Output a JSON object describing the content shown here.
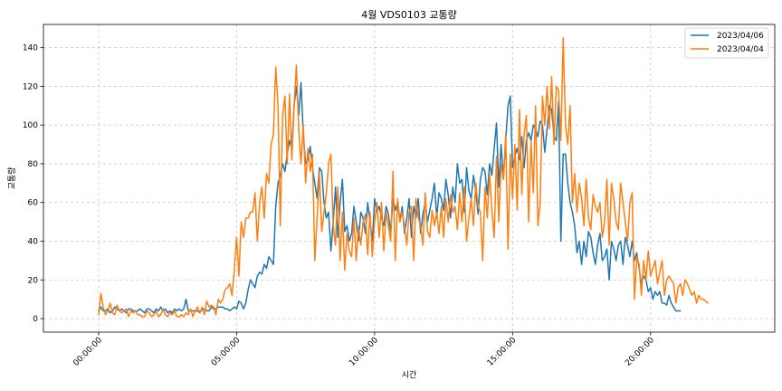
{
  "chart_data": {
    "type": "line",
    "title": "4월 VDS0103 교통량",
    "xlabel": "시간",
    "ylabel": "교통량",
    "xlim": [
      -7200,
      88200
    ],
    "ylim": [
      -7,
      152
    ],
    "x_ticks": [
      {
        "value": 0,
        "label": "00:00:00"
      },
      {
        "value": 18000,
        "label": "05:00:00"
      },
      {
        "value": 36000,
        "label": "10:00:00"
      },
      {
        "value": 54000,
        "label": "15:00:00"
      },
      {
        "value": 72000,
        "label": "20:00:00"
      }
    ],
    "y_ticks": [
      0,
      20,
      40,
      60,
      80,
      100,
      120,
      140
    ],
    "grid": true,
    "legend_position": "top-right",
    "interval_seconds": 300,
    "series": [
      {
        "name": "2023/04/06",
        "color": "#1f77b4",
        "values": [
          4,
          6,
          4,
          4,
          5,
          3,
          4,
          6,
          5,
          4,
          5,
          4,
          3,
          5,
          5,
          4,
          4,
          4,
          5,
          4,
          3,
          5,
          5,
          4,
          3,
          5,
          4,
          6,
          4,
          5,
          3,
          4,
          3,
          5,
          4,
          5,
          4,
          5,
          10,
          4,
          4,
          4,
          4,
          4,
          3,
          5,
          5,
          4,
          4,
          6,
          5,
          5,
          6,
          6,
          6,
          5,
          5,
          4,
          5,
          6,
          5,
          9,
          8,
          5,
          8,
          15,
          20,
          18,
          16,
          22,
          24,
          23,
          28,
          26,
          32,
          30,
          28,
          58,
          70,
          74,
          80,
          76,
          85,
          92,
          88,
          110,
          120,
          105,
          122,
          95,
          80,
          82,
          89,
          78,
          70,
          62,
          78,
          76,
          60,
          52,
          55,
          35,
          50,
          68,
          42,
          60,
          72,
          45,
          48,
          40,
          44,
          58,
          50,
          40,
          55,
          52,
          44,
          60,
          50,
          40,
          62,
          55,
          58,
          52,
          48,
          58,
          54,
          45,
          62,
          56,
          60,
          50,
          58,
          44,
          52,
          62,
          42,
          58,
          52,
          62,
          44,
          54,
          60,
          50,
          56,
          62,
          70,
          52,
          65,
          62,
          56,
          72,
          64,
          52,
          68,
          60,
          80,
          70,
          72,
          55,
          78,
          66,
          62,
          74,
          66,
          54,
          72,
          78,
          76,
          64,
          80,
          74,
          88,
          101,
          68,
          90,
          72,
          92,
          110,
          115,
          78,
          84,
          88,
          82,
          94,
          78,
          92,
          96,
          92,
          100,
          98,
          94,
          102,
          100,
          86,
          98,
          110,
          108,
          94,
          92,
          112,
          40,
          85,
          85,
          70,
          60,
          55,
          48,
          34,
          40,
          28,
          40,
          32,
          45,
          42,
          34,
          28,
          38,
          44,
          30,
          32,
          36,
          20,
          40,
          36,
          30,
          38,
          40,
          28,
          42,
          38,
          32,
          40,
          30,
          34,
          26,
          18,
          22,
          20,
          14,
          16,
          10,
          14,
          12,
          14,
          8,
          8,
          7,
          12,
          8,
          6,
          4,
          4,
          4
        ]
      },
      {
        "name": "2023/04/04",
        "color": "#ff7f0e",
        "values": [
          2,
          13,
          6,
          2,
          4,
          8,
          3,
          2,
          7,
          4,
          3,
          4,
          5,
          1,
          4,
          3,
          4,
          2,
          2,
          1,
          1,
          4,
          3,
          1,
          2,
          4,
          1,
          2,
          5,
          2,
          1,
          3,
          2,
          4,
          1,
          1,
          2,
          1,
          3,
          2,
          5,
          1,
          4,
          6,
          3,
          6,
          2,
          9,
          6,
          7,
          6,
          2,
          10,
          8,
          10,
          15,
          16,
          18,
          12,
          25,
          42,
          22,
          50,
          42,
          52,
          52,
          55,
          55,
          65,
          40,
          60,
          68,
          52,
          75,
          70,
          90,
          95,
          130,
          110,
          48,
          105,
          115,
          80,
          116,
          82,
          110,
          131,
          98,
          80,
          100,
          70,
          88,
          76,
          85,
          30,
          52,
          75,
          45,
          55,
          65,
          80,
          85,
          48,
          38,
          68,
          30,
          55,
          25,
          44,
          35,
          32,
          52,
          30,
          48,
          38,
          50,
          54,
          33,
          55,
          32,
          50,
          60,
          42,
          60,
          35,
          55,
          48,
          40,
          76,
          30,
          62,
          50,
          55,
          48,
          38,
          55,
          58,
          30,
          62,
          52,
          48,
          38,
          65,
          45,
          42,
          56,
          48,
          55,
          44,
          58,
          42,
          62,
          50,
          64,
          55,
          58,
          46,
          65,
          50,
          68,
          40,
          52,
          62,
          48,
          70,
          58,
          55,
          30,
          68,
          52,
          75,
          56,
          42,
          84,
          50,
          80,
          72,
          95,
          36,
          85,
          62,
          90,
          56,
          108,
          64,
          95,
          105,
          50,
          92,
          65,
          110,
          48,
          60,
          115,
          100,
          120,
          98,
          125,
          90,
          120,
          118,
          92,
          145,
          100,
          90,
          110,
          60,
          75,
          55,
          70,
          62,
          48,
          72,
          52,
          46,
          64,
          58,
          55,
          60,
          42,
          50,
          72,
          38,
          70,
          62,
          50,
          46,
          70,
          60,
          50,
          40,
          60,
          65,
          10,
          32,
          28,
          12,
          30,
          20,
          35,
          22,
          26,
          30,
          18,
          24,
          30,
          12,
          20,
          22,
          20,
          18,
          8,
          16,
          18,
          12,
          20,
          18,
          15,
          12,
          14,
          8,
          12,
          10,
          10,
          9,
          8
        ]
      }
    ]
  }
}
